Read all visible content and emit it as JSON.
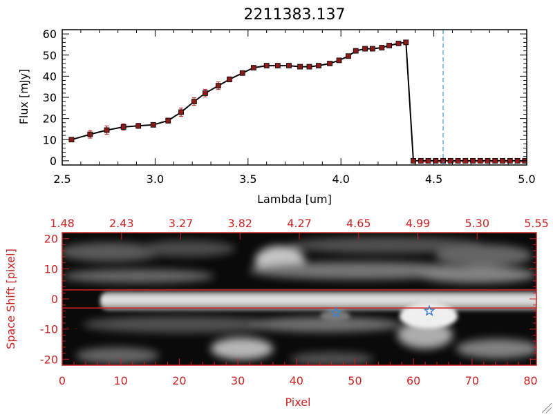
{
  "colors": {
    "axis": "#000000",
    "accent_red": "#cc2222",
    "errorbar": "#cc2222",
    "marker": "#8b1a1a",
    "line": "#000000",
    "dashed_line": "#3399cc",
    "star": "#3a7fd0"
  },
  "chart_data": [
    {
      "type": "line",
      "title": "2211383.137",
      "xlabel": "Lambda [um]",
      "ylabel": "Flux [mJy]",
      "xlim": [
        2.5,
        5.0
      ],
      "ylim": [
        -2,
        62
      ],
      "xticks": [
        "2.5",
        "3.0",
        "3.5",
        "4.0",
        "4.5",
        "5.0"
      ],
      "yticks": [
        "0",
        "10",
        "20",
        "30",
        "40",
        "50",
        "60"
      ],
      "vertical_marker_x": 4.55,
      "series": [
        {
          "x": [
            2.55,
            2.65,
            2.74,
            2.83,
            2.91,
            2.99,
            3.07,
            3.14,
            3.21,
            3.27,
            3.34,
            3.4,
            3.47,
            3.53,
            3.6,
            3.66,
            3.72,
            3.78,
            3.83,
            3.88,
            3.94,
            3.99,
            4.04,
            4.08,
            4.13,
            4.17,
            4.22,
            4.26,
            4.31,
            4.35,
            4.39,
            4.43,
            4.47,
            4.51,
            4.55,
            4.59,
            4.63,
            4.67,
            4.71,
            4.75,
            4.79,
            4.83,
            4.87,
            4.91,
            4.95,
            4.99
          ],
          "y": [
            10,
            12.5,
            14.5,
            16,
            16.5,
            17,
            19,
            23,
            28,
            32,
            35.5,
            38.5,
            41.5,
            44,
            45,
            45,
            45,
            44.5,
            44.5,
            45,
            46,
            47.5,
            49.5,
            52,
            53,
            53,
            53.5,
            54.5,
            55.5,
            56,
            0,
            0,
            0,
            0,
            0,
            0,
            0,
            0,
            0,
            0,
            0,
            0,
            0,
            0,
            0,
            0
          ],
          "yerr": [
            1.0,
            1.8,
            2.0,
            1.5,
            1.2,
            1.0,
            1.2,
            2.0,
            1.8,
            1.8,
            1.8,
            1.2,
            1.0,
            0.8,
            0.8,
            0.8,
            0.8,
            0.8,
            0.8,
            0.8,
            0.8,
            0.8,
            0.8,
            0.8,
            0.8,
            0.8,
            0.8,
            0.8,
            0.8,
            0.8,
            0,
            0,
            0,
            0,
            0,
            0,
            0,
            0,
            0,
            0,
            0,
            0,
            0,
            0,
            0,
            0
          ]
        }
      ]
    },
    {
      "type": "heatmap",
      "xlabel": "Pixel",
      "ylabel": "Space Shift [pixel]",
      "xlim": [
        0,
        81
      ],
      "ylim": [
        -22,
        22
      ],
      "xticks": [
        "0",
        "10",
        "20",
        "30",
        "40",
        "50",
        "60",
        "70",
        "80"
      ],
      "yticks": [
        "-20",
        "-10",
        "0",
        "10",
        "20"
      ],
      "top_axis_ticks": [
        "1.48",
        "2.43",
        "3.27",
        "3.82",
        "4.27",
        "4.65",
        "4.99",
        "5.30",
        "5.55"
      ],
      "extraction_lines_y": [
        3,
        -3
      ],
      "stars": [
        {
          "x": 46.8,
          "y": -4.5
        },
        {
          "x": 62.7,
          "y": -4.0
        }
      ]
    }
  ]
}
